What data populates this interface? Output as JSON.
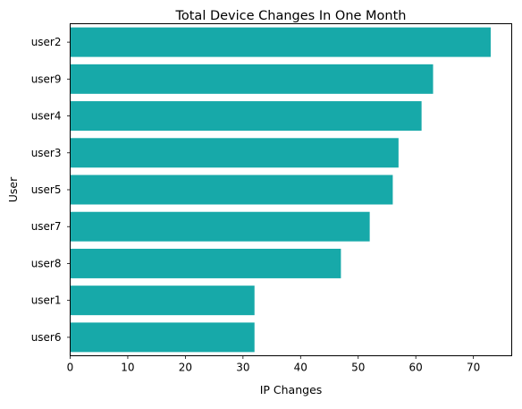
{
  "chart_data": {
    "type": "bar",
    "orientation": "horizontal",
    "title": "Total Device Changes In One Month",
    "xlabel": "IP Changes",
    "ylabel": "User",
    "categories": [
      "user2",
      "user9",
      "user4",
      "user3",
      "user5",
      "user7",
      "user8",
      "user1",
      "user6"
    ],
    "values": [
      73,
      63,
      61,
      57,
      56,
      52,
      47,
      32,
      32
    ],
    "xlim": [
      0,
      76.65
    ],
    "xticks": [
      0,
      10,
      20,
      30,
      40,
      50,
      60,
      70
    ],
    "grid": false,
    "legend": "none",
    "bar_color": "#17a9a9"
  }
}
